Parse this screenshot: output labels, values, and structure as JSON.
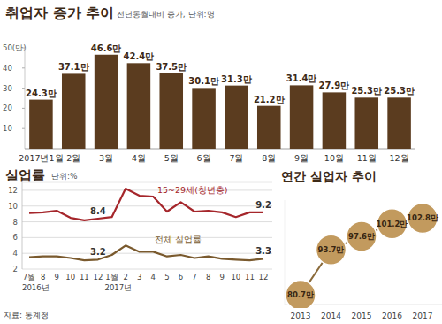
{
  "chart_data": [
    {
      "type": "bar",
      "title": "취업자 증가 추이",
      "subtitle": "전년동월대비 증가, 단위:명",
      "categories": [
        "2017년1월",
        "2월",
        "3월",
        "4월",
        "5월",
        "6월",
        "7월",
        "8월",
        "9월",
        "10월",
        "11월",
        "12월"
      ],
      "values": [
        24.3,
        37.1,
        46.6,
        42.4,
        37.5,
        30.1,
        31.3,
        21.2,
        31.4,
        27.9,
        25.3,
        25.3
      ],
      "value_labels": [
        "24.3만",
        "37.1만",
        "46.6만",
        "42.4만",
        "37.5만",
        "30.1만",
        "31.3만",
        "21.2만",
        "31.4만",
        "27.9만",
        "25.3만",
        "25.3만"
      ],
      "data_labels": true,
      "color": "#5b3c1f",
      "ylim": [
        0,
        50
      ],
      "yticks": [
        10,
        20,
        30,
        40,
        {
          "value": 50,
          "label": "50(만)"
        }
      ],
      "grid": false
    },
    {
      "type": "line",
      "title": "실업률",
      "subtitle": "단위:%",
      "categories": [
        "7월",
        "8",
        "9",
        "10",
        "11",
        "12",
        "1월",
        "2",
        "3",
        "4",
        "5",
        "6",
        "7",
        "8",
        "9",
        "10",
        "11",
        "12"
      ],
      "x_groups": [
        {
          "label": "2016년",
          "start": 0
        },
        {
          "label": "2017년",
          "start": 6
        }
      ],
      "ylim": [
        2,
        13
      ],
      "yticks": [
        2,
        4,
        6,
        8,
        10,
        12
      ],
      "grid": true,
      "series": [
        {
          "name": "15~29세(청년층)",
          "color": "#a5262b",
          "values": [
            9.1,
            9.2,
            9.4,
            8.5,
            8.2,
            8.4,
            8.6,
            12.2,
            11.3,
            11.2,
            9.3,
            10.5,
            9.3,
            9.4,
            9.2,
            8.6,
            9.2,
            9.2
          ],
          "value_labels": [
            null,
            null,
            null,
            null,
            null,
            "8.4",
            null,
            null,
            null,
            null,
            null,
            null,
            null,
            null,
            null,
            null,
            null,
            "9.2"
          ]
        },
        {
          "name": "전체 실업률",
          "color": "#7a5a2e",
          "values": [
            3.5,
            3.6,
            3.6,
            3.4,
            3.1,
            3.2,
            3.8,
            5.0,
            4.2,
            4.2,
            3.6,
            3.8,
            3.4,
            3.6,
            3.3,
            3.2,
            3.1,
            3.3
          ],
          "value_labels": [
            null,
            null,
            null,
            null,
            null,
            "3.2",
            null,
            null,
            null,
            null,
            null,
            null,
            null,
            null,
            null,
            null,
            null,
            "3.3"
          ]
        }
      ]
    },
    {
      "type": "line",
      "title": "연간 실업자 추이",
      "categories": [
        "2013",
        "2014",
        "2015",
        "2016",
        "2017"
      ],
      "values": [
        80.7,
        93.7,
        97.6,
        101.2,
        102.8
      ],
      "value_labels": [
        "80.7만",
        "93.7만",
        "97.6만",
        "101.2만",
        "102.8만"
      ],
      "data_labels": true,
      "marker": "circle",
      "color": "#c29a5e",
      "ylim": [
        78,
        108
      ],
      "tick_labels": "x",
      "grid": false
    }
  ],
  "source": "자료: 통계청"
}
